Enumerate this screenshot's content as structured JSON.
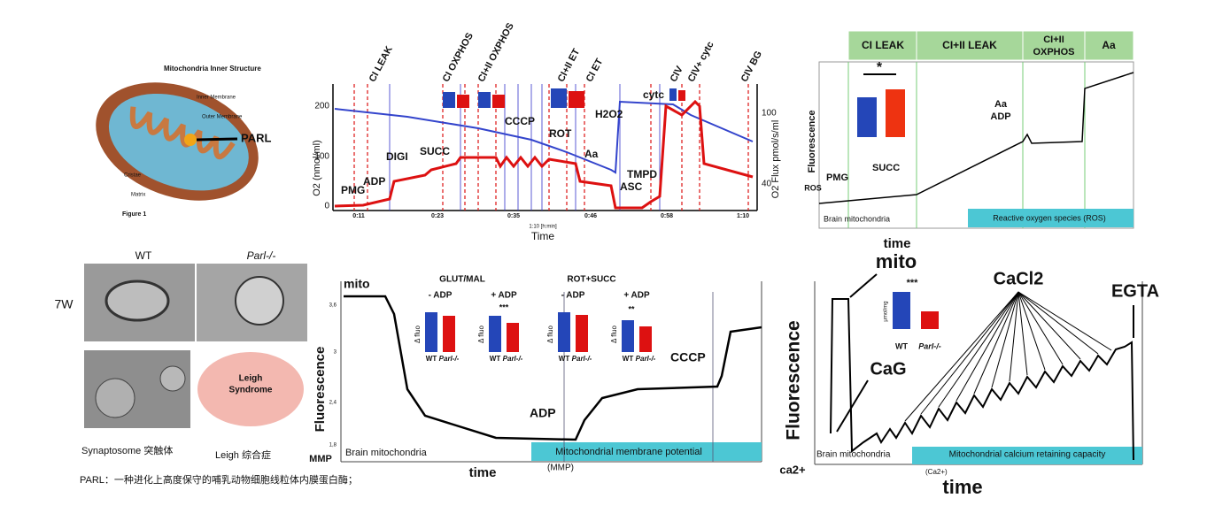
{
  "structure": {
    "title": "Mitochondria Inner Structure",
    "labels": [
      "Inner Membrane",
      "Outer Membrane",
      "Cristae",
      "Matrix"
    ],
    "protein": "PARL",
    "figure": "Figure 1"
  },
  "micrographs": {
    "genotypes": [
      "WT",
      "Parl-/-"
    ],
    "age": "7W",
    "brain": [
      "Leigh",
      "Syndrome"
    ],
    "captions": [
      "Synaptosome 突触体",
      "Leigh 综合症"
    ]
  },
  "caption": "PARL：一种进化上高度保守的哺乳动物细胞线粒体内膜蛋白酶；",
  "oxygraph": {
    "states": [
      "CI LEAK",
      "CI OXPHOS",
      "CI+II OXPHOS",
      "CI+II  ET",
      "CI ET",
      "CIV",
      "CIV+ cytc",
      "CIV BG"
    ],
    "events": [
      "PMG",
      "ADP",
      "DIGI",
      "SUCC",
      "CCCP",
      "ROT",
      "Aa",
      "H2O2",
      "TMPD",
      "ASC",
      "cytc"
    ],
    "y_label": "O2 (nmol/ml)",
    "y_ticks": [
      "200",
      "100",
      "0"
    ],
    "y2_label": "O2 Flux pmol/s/ml",
    "y2_ticks": [
      "100",
      "40"
    ],
    "x_ticks": [
      "0:11",
      "0:23",
      "0:35",
      "0:46",
      "0:58",
      "1:10"
    ],
    "x_unit": "1:10 [h:min]",
    "x_label": "Time"
  },
  "ros": {
    "states": [
      "CI LEAK",
      "CI+II LEAK",
      "CI+II",
      "OXPHOS",
      "Aa"
    ],
    "events": [
      "PMG",
      "SUCC",
      "Aa",
      "ADP"
    ],
    "y_label": "Fluorescence",
    "signal": "ROS",
    "sample": "Brain mitochondria",
    "assay": "Reactive oxygen species (ROS)",
    "x_label": "time",
    "significance": "*"
  },
  "mmp": {
    "events": [
      "mito",
      "ADP",
      "CCCP"
    ],
    "groups": [
      "GLUT/MAL",
      "ROT+SUCC"
    ],
    "conditions": [
      "- ADP",
      "+ ADP",
      "- ADP",
      "+ ADP"
    ],
    "significance": [
      "***",
      "**"
    ],
    "delta": "Δ fluo",
    "genotypes": [
      "WT",
      "Parl-/-"
    ],
    "y_label": "Fluorescence",
    "signal": "MMP",
    "y_ticks": [
      "3,6",
      "3",
      "2,4",
      "1,8"
    ],
    "sample": "Brain mitochondria",
    "assay": "Mitochondrial membrane potential",
    "assay_abbrev": "(MMP)",
    "x_label": "time"
  },
  "calcium": {
    "events": [
      "mito",
      "CaCl2",
      "EGTA",
      "CaG"
    ],
    "y_label": "Fluorescence",
    "signal": "ca2+",
    "sample": "Brain mitochondria",
    "assay": "Mitochondrial calcium retaining capacity",
    "assay_abbrev": "(Ca2+)",
    "x_label": "time",
    "significance": "***",
    "unit": "μmol/mg",
    "genotypes": [
      "WT",
      "Parl-/-"
    ]
  }
}
